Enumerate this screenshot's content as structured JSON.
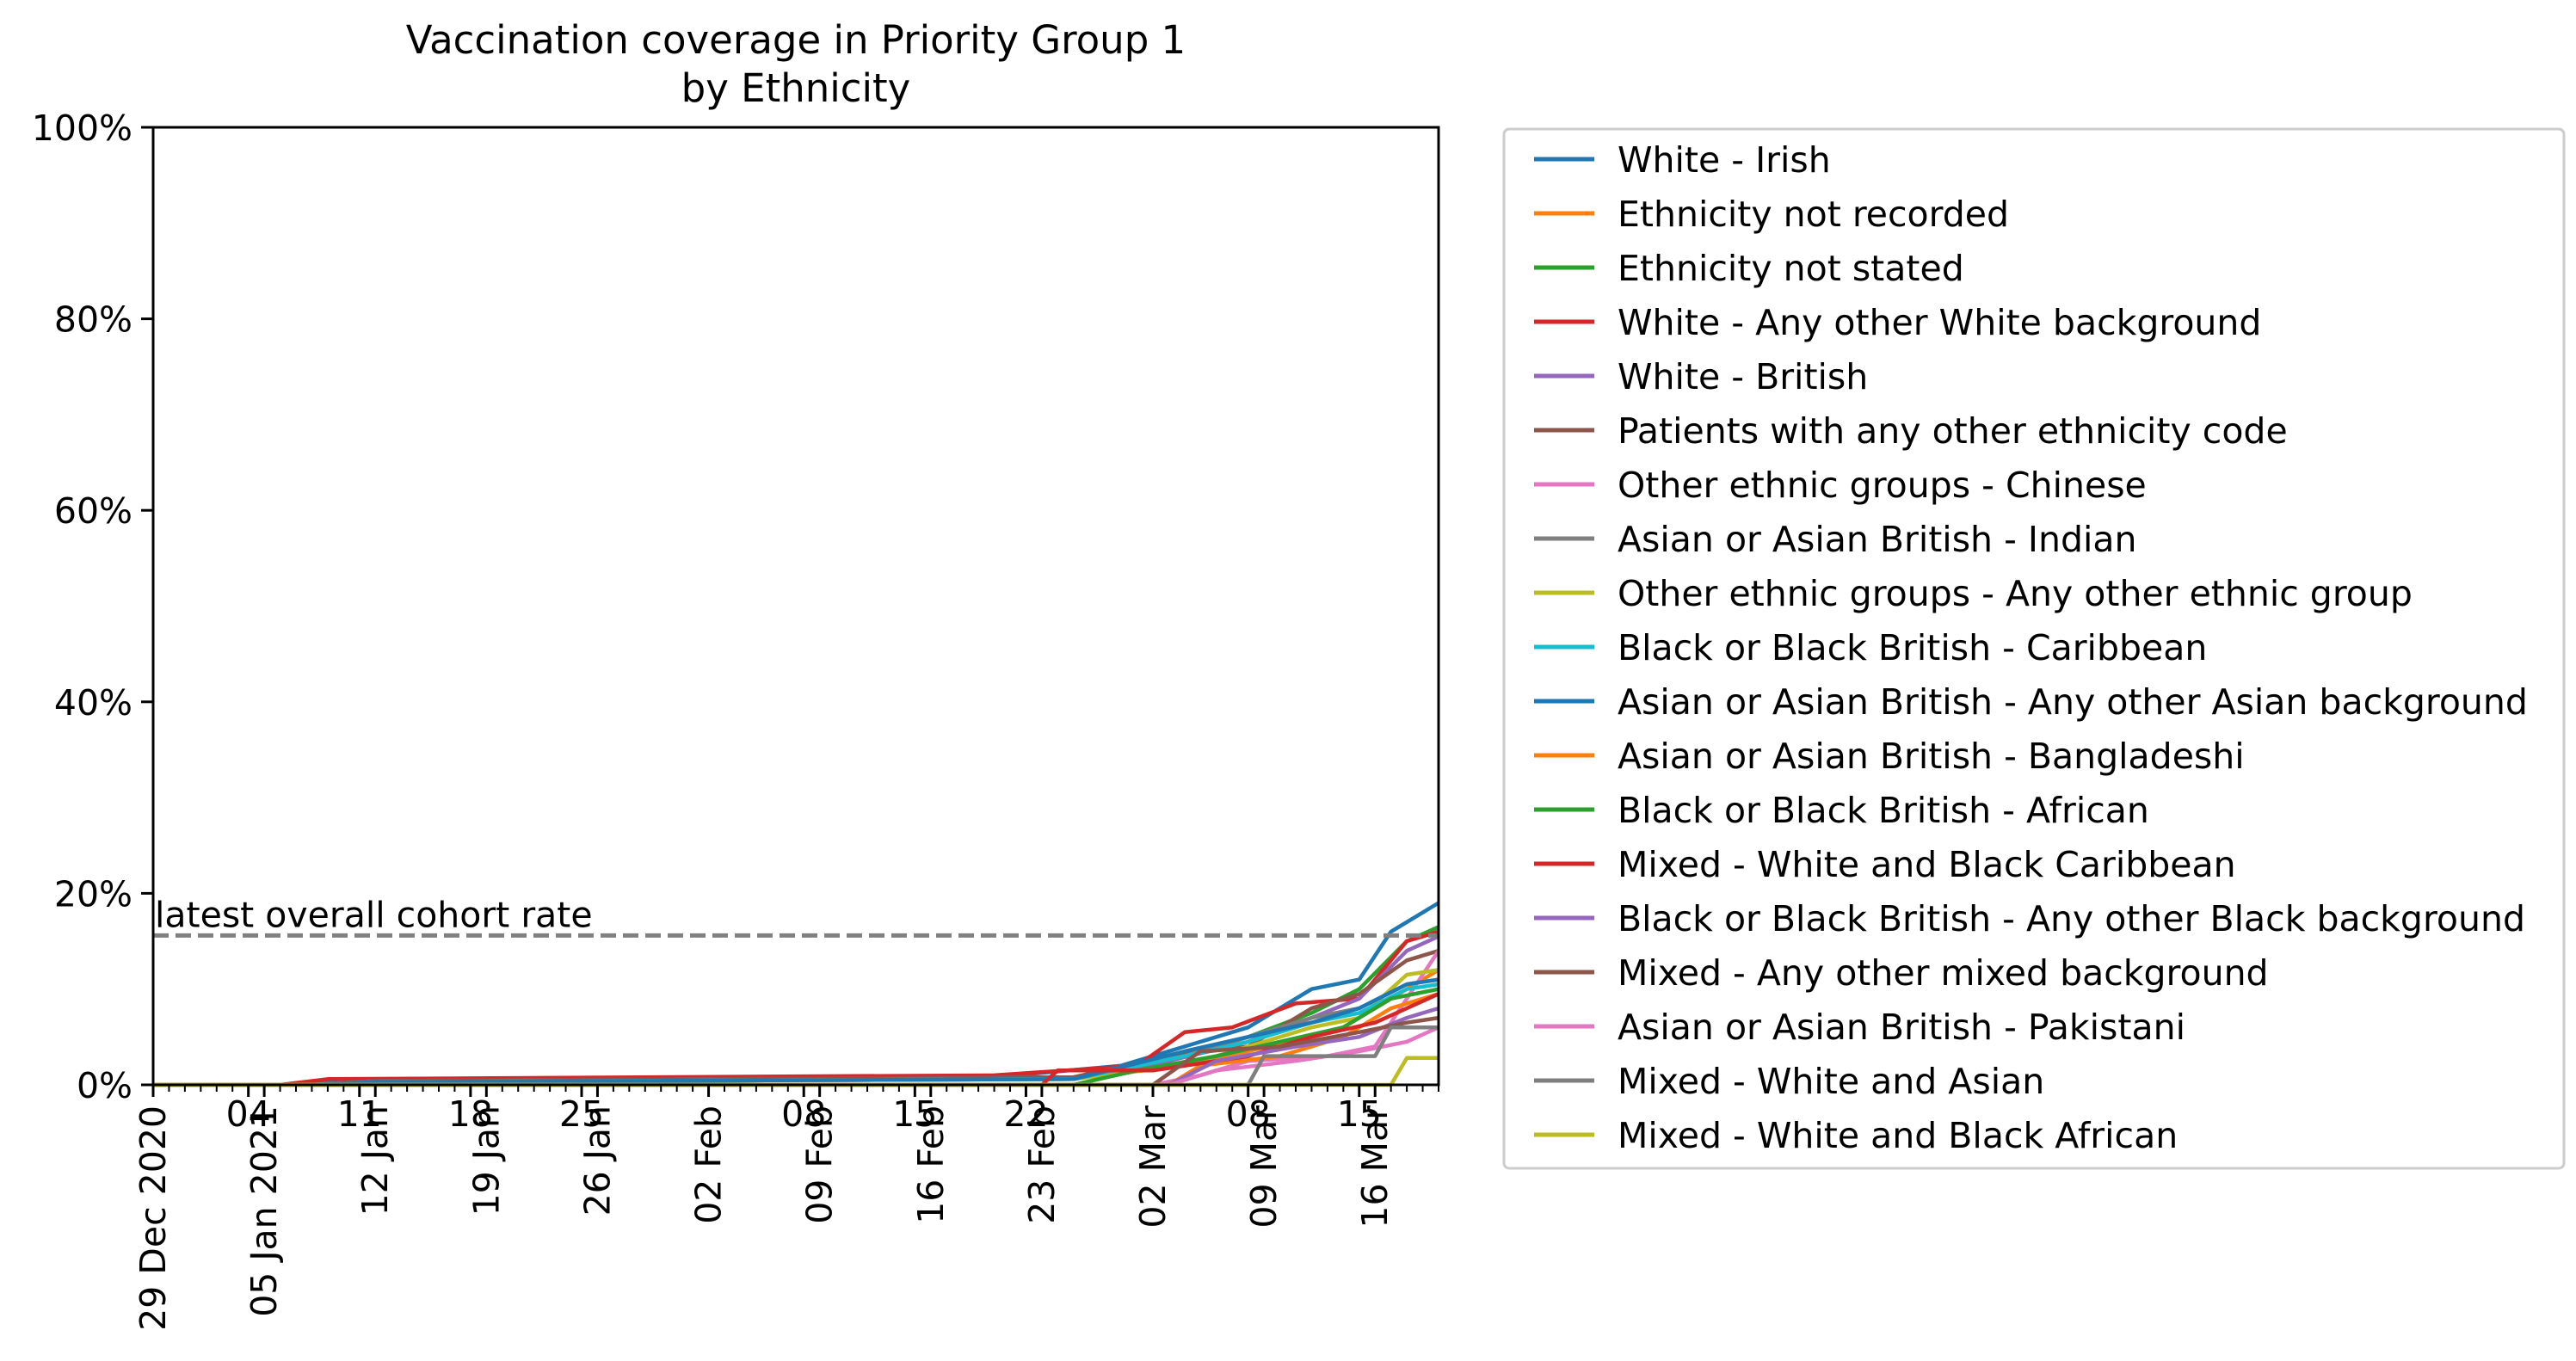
{
  "chart_data": {
    "type": "line",
    "title": "Vaccination coverage in Priority Group 1",
    "subtitle": "by Ethnicity",
    "xlabel": "",
    "ylabel": "",
    "ylim": [
      0,
      100
    ],
    "xlim": [
      "2020-12-29",
      "2021-03-20"
    ],
    "grid": false,
    "legend_position": "outside-right",
    "y_ticks": [
      "0%",
      "20%",
      "40%",
      "60%",
      "80%",
      "100%"
    ],
    "x_major_ticks": [
      {
        "date": "2020-12-29",
        "label": "29 Dec 2020"
      },
      {
        "date": "2021-01-05",
        "label": "05 Jan 2021"
      },
      {
        "date": "2021-01-12",
        "label": "12 Jan"
      },
      {
        "date": "2021-01-19",
        "label": "19 Jan"
      },
      {
        "date": "2021-01-26",
        "label": "26 Jan"
      },
      {
        "date": "2021-02-02",
        "label": "02 Feb"
      },
      {
        "date": "2021-02-09",
        "label": "09 Feb"
      },
      {
        "date": "2021-02-16",
        "label": "16 Feb"
      },
      {
        "date": "2021-02-23",
        "label": "23 Feb"
      },
      {
        "date": "2021-03-02",
        "label": "02 Mar"
      },
      {
        "date": "2021-03-09",
        "label": "09 Mar"
      },
      {
        "date": "2021-03-16",
        "label": "16 Mar"
      }
    ],
    "x_secondary_ticks": [
      {
        "date": "2021-01-04",
        "label": "04"
      },
      {
        "date": "2021-01-11",
        "label": "11"
      },
      {
        "date": "2021-01-18",
        "label": "18"
      },
      {
        "date": "2021-01-25",
        "label": "25"
      },
      {
        "date": "2021-02-08",
        "label": "08"
      },
      {
        "date": "2021-02-15",
        "label": "15"
      },
      {
        "date": "2021-02-22",
        "label": "22"
      },
      {
        "date": "2021-03-08",
        "label": "08"
      },
      {
        "date": "2021-03-15",
        "label": "15"
      }
    ],
    "reference_line": {
      "value": 15.6,
      "label": "latest overall cohort rate",
      "color": "#808080"
    },
    "series": [
      {
        "name": "White - Irish",
        "color": "#1f77b4",
        "points": [
          [
            "2020-12-29",
            0
          ],
          [
            "2021-01-06",
            0
          ],
          [
            "2021-01-10",
            0.5
          ],
          [
            "2021-02-20",
            0.8
          ],
          [
            "2021-02-28",
            2.0
          ],
          [
            "2021-03-05",
            4.5
          ],
          [
            "2021-03-08",
            6.0
          ],
          [
            "2021-03-12",
            10.0
          ],
          [
            "2021-03-15",
            11.0
          ],
          [
            "2021-03-17",
            16.0
          ],
          [
            "2021-03-19",
            18.0
          ],
          [
            "2021-03-20",
            19.0
          ]
        ]
      },
      {
        "name": "Ethnicity not recorded",
        "color": "#ff7f0e",
        "points": [
          [
            "2020-12-29",
            0
          ],
          [
            "2021-01-08",
            0
          ],
          [
            "2021-01-12",
            0.4
          ],
          [
            "2021-02-25",
            0.8
          ],
          [
            "2021-03-03",
            2.0
          ],
          [
            "2021-03-08",
            3.5
          ],
          [
            "2021-03-14",
            6.0
          ],
          [
            "2021-03-17",
            9.0
          ],
          [
            "2021-03-20",
            12.0
          ]
        ]
      },
      {
        "name": "Ethnicity not stated",
        "color": "#2ca02c",
        "points": [
          [
            "2020-12-29",
            0
          ],
          [
            "2021-01-08",
            0
          ],
          [
            "2021-01-12",
            0.3
          ],
          [
            "2021-02-25",
            0.6
          ],
          [
            "2021-03-03",
            2.5
          ],
          [
            "2021-03-08",
            5.0
          ],
          [
            "2021-03-12",
            7.5
          ],
          [
            "2021-03-15",
            10.0
          ],
          [
            "2021-03-18",
            15.0
          ],
          [
            "2021-03-20",
            16.5
          ]
        ]
      },
      {
        "name": "White - Any other White background",
        "color": "#d62728",
        "points": [
          [
            "2020-12-29",
            0
          ],
          [
            "2021-01-06",
            0
          ],
          [
            "2021-01-09",
            0.6
          ],
          [
            "2021-02-20",
            1.0
          ],
          [
            "2021-03-01",
            2.0
          ],
          [
            "2021-03-04",
            5.5
          ],
          [
            "2021-03-07",
            6.0
          ],
          [
            "2021-03-11",
            8.5
          ],
          [
            "2021-03-15",
            9.0
          ],
          [
            "2021-03-18",
            15.0
          ],
          [
            "2021-03-20",
            16.0
          ]
        ]
      },
      {
        "name": "White - British",
        "color": "#9467bd",
        "points": [
          [
            "2020-12-29",
            0
          ],
          [
            "2021-01-08",
            0
          ],
          [
            "2021-01-12",
            0.4
          ],
          [
            "2021-02-25",
            0.8
          ],
          [
            "2021-03-03",
            2.5
          ],
          [
            "2021-03-08",
            4.5
          ],
          [
            "2021-03-12",
            7.0
          ],
          [
            "2021-03-15",
            9.0
          ],
          [
            "2021-03-18",
            14.0
          ],
          [
            "2021-03-20",
            15.5
          ]
        ]
      },
      {
        "name": "Patients with any other ethnicity code",
        "color": "#8c564b",
        "points": [
          [
            "2020-12-29",
            0
          ],
          [
            "2021-01-08",
            0
          ],
          [
            "2021-01-12",
            0.4
          ],
          [
            "2021-02-25",
            0.8
          ],
          [
            "2021-03-03",
            3.0
          ],
          [
            "2021-03-08",
            4.0
          ],
          [
            "2021-03-12",
            8.0
          ],
          [
            "2021-03-15",
            9.5
          ],
          [
            "2021-03-18",
            13.0
          ],
          [
            "2021-03-20",
            14.0
          ]
        ]
      },
      {
        "name": "Other ethnic groups - Chinese",
        "color": "#e377c2",
        "points": [
          [
            "2020-12-29",
            0
          ],
          [
            "2021-03-02",
            0
          ],
          [
            "2021-03-05",
            1.0
          ],
          [
            "2021-03-08",
            2.5
          ],
          [
            "2021-03-13",
            3.0
          ],
          [
            "2021-03-16",
            4.0
          ],
          [
            "2021-03-18",
            9.0
          ],
          [
            "2021-03-20",
            14.0
          ]
        ]
      },
      {
        "name": "Asian or Asian British - Indian",
        "color": "#7f7f7f",
        "points": [
          [
            "2020-12-29",
            0
          ],
          [
            "2021-01-08",
            0
          ],
          [
            "2021-01-12",
            0.3
          ],
          [
            "2021-02-25",
            0.6
          ],
          [
            "2021-03-04",
            3.0
          ],
          [
            "2021-03-08",
            5.0
          ],
          [
            "2021-03-12",
            7.0
          ],
          [
            "2021-03-15",
            8.0
          ],
          [
            "2021-03-18",
            10.5
          ],
          [
            "2021-03-20",
            11.0
          ]
        ]
      },
      {
        "name": "Other ethnic groups - Any other ethnic group",
        "color": "#bcbd22",
        "points": [
          [
            "2020-12-29",
            0
          ],
          [
            "2021-01-08",
            0
          ],
          [
            "2021-01-12",
            0.3
          ],
          [
            "2021-02-25",
            0.6
          ],
          [
            "2021-03-04",
            2.0
          ],
          [
            "2021-03-08",
            4.0
          ],
          [
            "2021-03-12",
            6.0
          ],
          [
            "2021-03-15",
            7.0
          ],
          [
            "2021-03-18",
            11.5
          ],
          [
            "2021-03-20",
            12.0
          ]
        ]
      },
      {
        "name": "Black or Black British - Caribbean",
        "color": "#17becf",
        "points": [
          [
            "2020-12-29",
            0
          ],
          [
            "2021-01-08",
            0
          ],
          [
            "2021-01-12",
            0.3
          ],
          [
            "2021-02-25",
            0.6
          ],
          [
            "2021-03-04",
            3.0
          ],
          [
            "2021-03-08",
            4.5
          ],
          [
            "2021-03-12",
            6.5
          ],
          [
            "2021-03-15",
            7.5
          ],
          [
            "2021-03-18",
            10.0
          ],
          [
            "2021-03-20",
            10.5
          ]
        ]
      },
      {
        "name": "Asian or Asian British - Any other Asian background",
        "color": "#1f77b4",
        "points": [
          [
            "2020-12-29",
            0
          ],
          [
            "2021-01-08",
            0
          ],
          [
            "2021-01-12",
            0.3
          ],
          [
            "2021-02-25",
            0.6
          ],
          [
            "2021-03-04",
            3.5
          ],
          [
            "2021-03-08",
            5.0
          ],
          [
            "2021-03-12",
            6.5
          ],
          [
            "2021-03-15",
            8.0
          ],
          [
            "2021-03-18",
            10.5
          ],
          [
            "2021-03-20",
            11.0
          ]
        ]
      },
      {
        "name": "Asian or Asian British - Bangladeshi",
        "color": "#ff7f0e",
        "points": [
          [
            "2020-12-29",
            0
          ],
          [
            "2021-03-03",
            0
          ],
          [
            "2021-03-05",
            2.0
          ],
          [
            "2021-03-10",
            3.0
          ],
          [
            "2021-03-14",
            5.0
          ],
          [
            "2021-03-17",
            8.0
          ],
          [
            "2021-03-20",
            9.5
          ]
        ]
      },
      {
        "name": "Black or Black British - African",
        "color": "#2ca02c",
        "points": [
          [
            "2020-12-29",
            0
          ],
          [
            "2021-02-25",
            0
          ],
          [
            "2021-03-01",
            1.5
          ],
          [
            "2021-03-06",
            3.0
          ],
          [
            "2021-03-10",
            4.5
          ],
          [
            "2021-03-14",
            6.0
          ],
          [
            "2021-03-17",
            9.0
          ],
          [
            "2021-03-20",
            10.0
          ]
        ]
      },
      {
        "name": "Mixed - White and Black Caribbean",
        "color": "#d62728",
        "points": [
          [
            "2020-12-29",
            0
          ],
          [
            "2021-02-23",
            0
          ],
          [
            "2021-02-24",
            1.5
          ],
          [
            "2021-03-02",
            1.5
          ],
          [
            "2021-03-08",
            3.0
          ],
          [
            "2021-03-12",
            5.0
          ],
          [
            "2021-03-16",
            6.5
          ],
          [
            "2021-03-18",
            8.0
          ],
          [
            "2021-03-20",
            9.5
          ]
        ]
      },
      {
        "name": "Black or Black British - Any other Black background",
        "color": "#9467bd",
        "points": [
          [
            "2020-12-29",
            0
          ],
          [
            "2021-03-03",
            0
          ],
          [
            "2021-03-06",
            2.5
          ],
          [
            "2021-03-11",
            4.0
          ],
          [
            "2021-03-15",
            5.0
          ],
          [
            "2021-03-18",
            7.0
          ],
          [
            "2021-03-20",
            8.0
          ]
        ]
      },
      {
        "name": "Mixed - Any other mixed background",
        "color": "#8c564b",
        "points": [
          [
            "2020-12-29",
            0
          ],
          [
            "2021-03-02",
            0
          ],
          [
            "2021-03-05",
            3.5
          ],
          [
            "2021-03-10",
            4.0
          ],
          [
            "2021-03-15",
            5.5
          ],
          [
            "2021-03-18",
            6.5
          ],
          [
            "2021-03-20",
            7.0
          ]
        ]
      },
      {
        "name": "Asian or Asian British - Pakistani",
        "color": "#e377c2",
        "points": [
          [
            "2020-12-29",
            0
          ],
          [
            "2021-03-03",
            0
          ],
          [
            "2021-03-06",
            1.5
          ],
          [
            "2021-03-11",
            2.5
          ],
          [
            "2021-03-15",
            3.5
          ],
          [
            "2021-03-18",
            4.5
          ],
          [
            "2021-03-20",
            6.0
          ]
        ]
      },
      {
        "name": "Mixed - White and Asian",
        "color": "#7f7f7f",
        "points": [
          [
            "2020-12-29",
            0
          ],
          [
            "2021-03-08",
            0
          ],
          [
            "2021-03-09",
            3.0
          ],
          [
            "2021-03-16",
            3.0
          ],
          [
            "2021-03-17",
            6.0
          ],
          [
            "2021-03-20",
            6.0
          ]
        ]
      },
      {
        "name": "Mixed - White and Black African",
        "color": "#bcbd22",
        "points": [
          [
            "2020-12-29",
            0
          ],
          [
            "2021-03-17",
            0
          ],
          [
            "2021-03-18",
            2.8
          ],
          [
            "2021-03-20",
            2.8
          ]
        ]
      }
    ]
  }
}
